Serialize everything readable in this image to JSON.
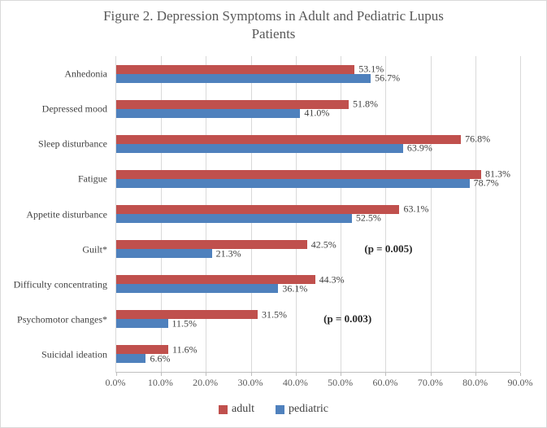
{
  "figure": {
    "title": "Figure 2. Depression Symptoms in Adult and Pediatric Lupus Patients",
    "title_lines": [
      "Figure 2. Depression Symptoms in Adult and Pediatric Lupus",
      "Patients"
    ]
  },
  "chart_data": {
    "type": "bar",
    "orientation": "horizontal",
    "title": "Figure 2. Depression Symptoms in Adult and Pediatric Lupus Patients",
    "categories": [
      "Anhedonia",
      "Depressed mood",
      "Sleep disturbance",
      "Fatigue",
      "Appetite disturbance",
      "Guilt*",
      "Difficulty concentrating",
      "Psychomotor changes*",
      "Suicidal ideation"
    ],
    "series": [
      {
        "name": "adult",
        "color": "#C0504D",
        "values": [
          53.1,
          51.8,
          76.8,
          81.3,
          63.1,
          42.5,
          44.3,
          31.5,
          11.6
        ],
        "labels": [
          "53.1%",
          "51.8%",
          "76.8%",
          "81.3%",
          "63.1%",
          "42.5%",
          "44.3%",
          "31.5%",
          "11.6%"
        ]
      },
      {
        "name": "pediatric",
        "color": "#4F81BD",
        "values": [
          56.7,
          41.0,
          63.9,
          78.7,
          52.5,
          21.3,
          36.1,
          11.5,
          6.6
        ],
        "labels": [
          "56.7%",
          "41.0%",
          "63.9%",
          "78.7%",
          "52.5%",
          "21.3%",
          "36.1%",
          "11.5%",
          "6.6%"
        ]
      }
    ],
    "xlim": [
      0,
      90
    ],
    "x_ticks": [
      "0.0%",
      "10.0%",
      "20.0%",
      "30.0%",
      "40.0%",
      "50.0%",
      "60.0%",
      "70.0%",
      "80.0%",
      "90.0%"
    ],
    "grid": "vertical-on",
    "legend_position": "bottom",
    "annotations": [
      {
        "category": "Guilt*",
        "row_index": 5,
        "text": "(p = 0.005)",
        "x": 55.3
      },
      {
        "category": "Psychomotor changes*",
        "row_index": 7,
        "text": "(p = 0.003)",
        "x": 46.2
      }
    ]
  },
  "colors": {
    "adult": "#C0504D",
    "pediatric": "#4F81BD",
    "title_text": "#595959",
    "label_text": "#404040",
    "tick_text": "#595959",
    "gridline": "#D9D9D9",
    "axis_line": "#BFBFBF",
    "border": "#D9D9D9",
    "annotation_text": "#262626"
  }
}
